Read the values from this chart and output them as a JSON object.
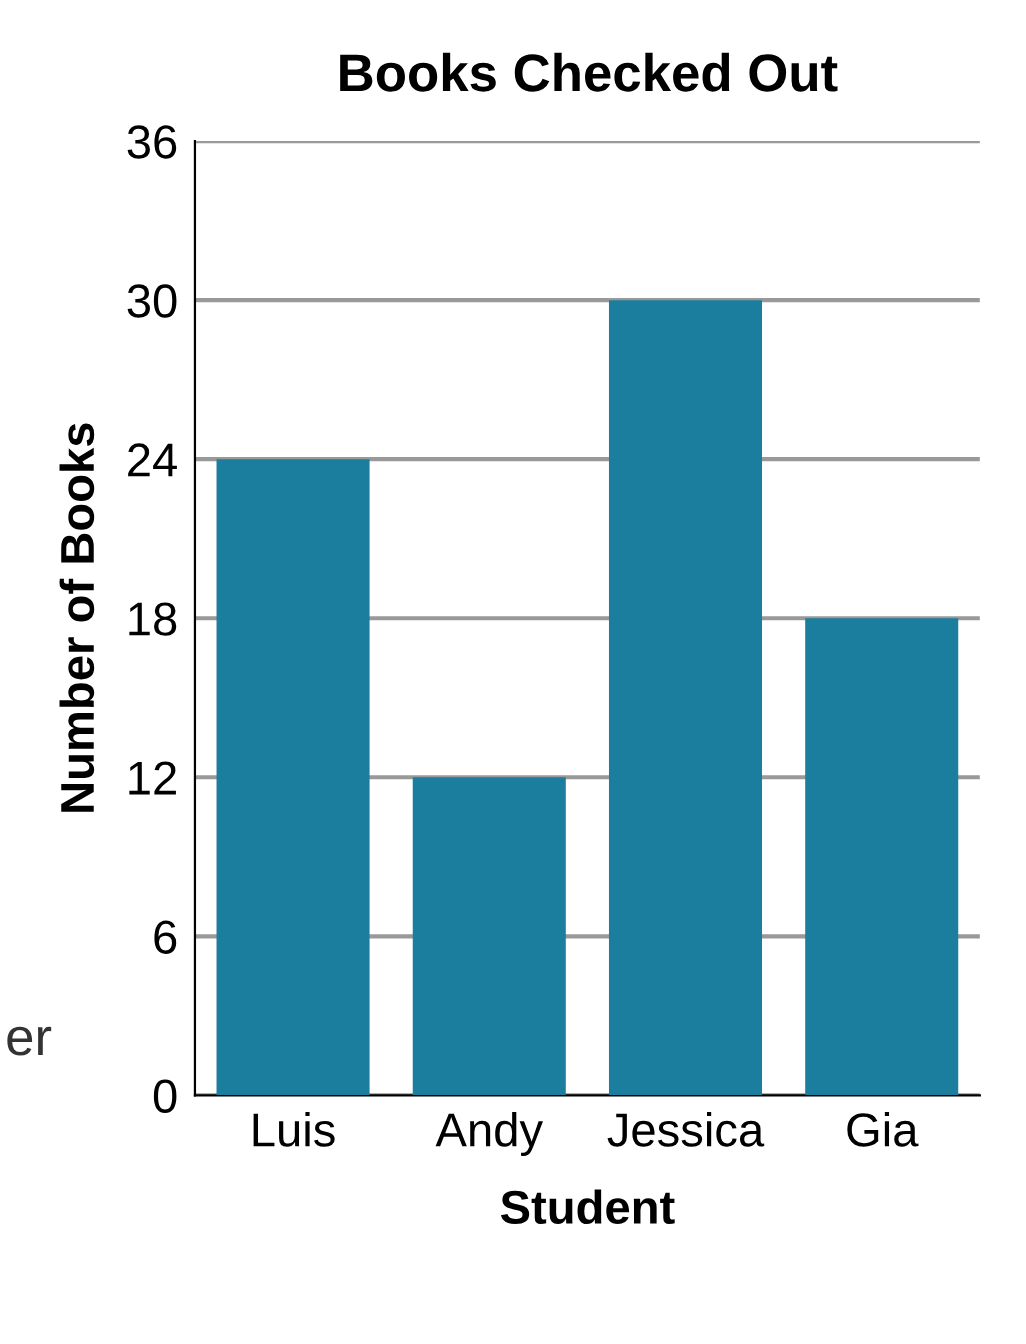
{
  "chart_data": {
    "type": "bar",
    "title": "Books Checked Out",
    "xlabel": "Student",
    "ylabel": "Number of Books",
    "categories": [
      "Luis",
      "Andy",
      "Jessica",
      "Gia"
    ],
    "values": [
      24,
      12,
      30,
      18
    ],
    "color": "#1b7e9e",
    "ylim": [
      0,
      36
    ],
    "yticks": [
      0,
      6,
      12,
      18,
      24,
      30,
      36
    ],
    "grid": "y",
    "annotations": [
      "er"
    ]
  }
}
